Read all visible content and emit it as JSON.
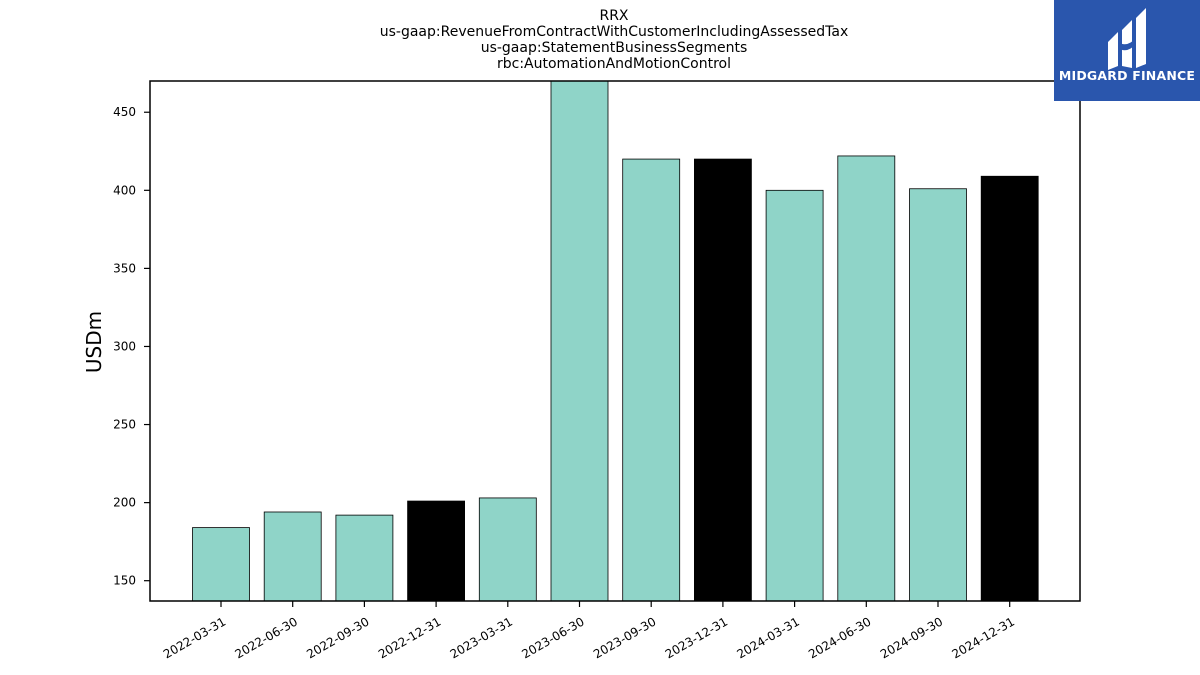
{
  "chart_data": {
    "type": "bar",
    "title": [
      "RRX",
      "us-gaap:RevenueFromContractWithCustomerIncludingAssessedTax",
      "us-gaap:StatementBusinessSegments",
      "rbc:AutomationAndMotionControl"
    ],
    "ylabel": "USDm",
    "xlabel": "",
    "categories": [
      "2022-03-31",
      "2022-06-30",
      "2022-09-30",
      "2022-12-31",
      "2023-03-31",
      "2023-06-30",
      "2023-09-30",
      "2023-12-31",
      "2024-03-31",
      "2024-06-30",
      "2024-09-30",
      "2024-12-31"
    ],
    "values": [
      184,
      194,
      192,
      201,
      203,
      471,
      420,
      420,
      400,
      422,
      401,
      409
    ],
    "bar_colors": [
      "#8fd4c8",
      "#8fd4c8",
      "#8fd4c8",
      "#000000",
      "#8fd4c8",
      "#8fd4c8",
      "#8fd4c8",
      "#000000",
      "#8fd4c8",
      "#8fd4c8",
      "#8fd4c8",
      "#000000"
    ],
    "yticks": [
      150,
      200,
      250,
      300,
      350,
      400,
      450
    ],
    "ylim": [
      137,
      470
    ],
    "grid": false,
    "legend": "none"
  },
  "logo": {
    "text": "MIDGARD FINANCE",
    "background": "#2a56ad"
  }
}
